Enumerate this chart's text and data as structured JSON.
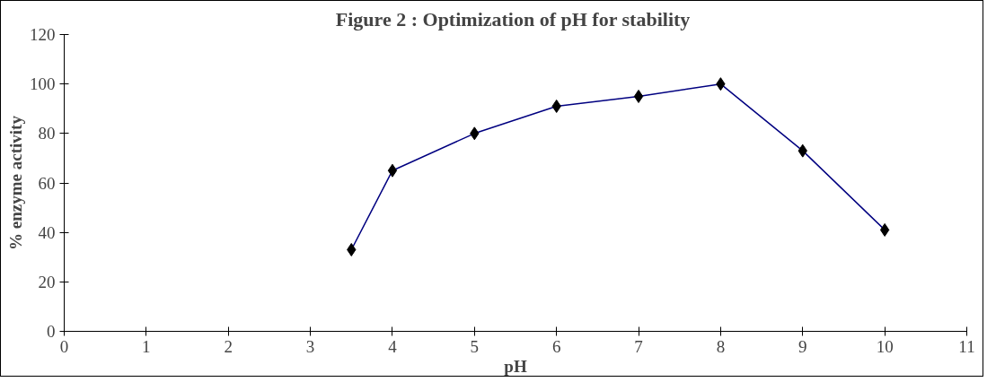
{
  "chart_data": {
    "type": "line",
    "title": "Figure  2 : Optimization of pH for stability",
    "xlabel": "pH",
    "ylabel": "% enzyme activity",
    "x": [
      3.5,
      4,
      5,
      6,
      7,
      8,
      9,
      10
    ],
    "series": [
      {
        "color": "#000080",
        "values": [
          33,
          65,
          80,
          91,
          95,
          100,
          73,
          41
        ]
      }
    ],
    "xlim": [
      0,
      11
    ],
    "xticks": [
      0,
      1,
      2,
      3,
      4,
      5,
      6,
      7,
      8,
      9,
      10,
      11
    ],
    "ylim": [
      0,
      120
    ],
    "yticks": [
      0,
      20,
      40,
      60,
      80,
      100,
      120
    ],
    "grid": false,
    "marker": "diamond",
    "line_style": "solid"
  }
}
